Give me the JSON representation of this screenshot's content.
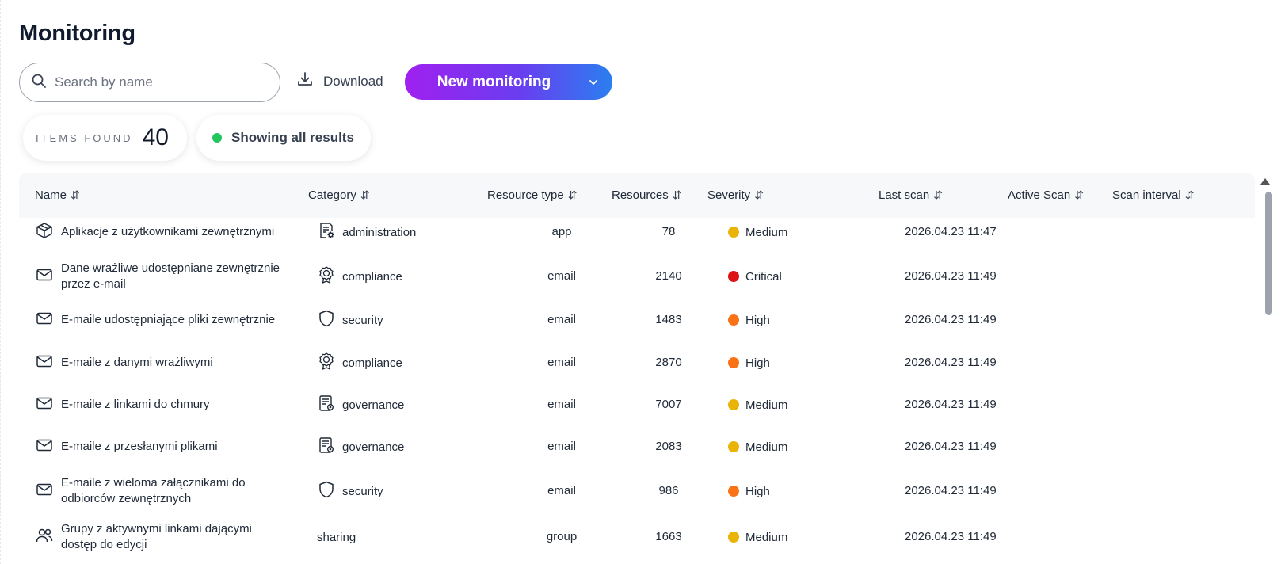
{
  "page": {
    "title": "Monitoring"
  },
  "toolbar": {
    "search_placeholder": "Search by name",
    "download_label": "Download",
    "new_label": "New monitoring"
  },
  "summary": {
    "items_found_label": "ITEMS FOUND",
    "items_found_value": "40",
    "filter_status": "Showing all results"
  },
  "table": {
    "columns": [
      "Name",
      "Category",
      "Resource type",
      "Resources",
      "Severity",
      "Last scan",
      "Active Scan",
      "Scan interval"
    ],
    "sort_icon": "⇵",
    "severity_colors": {
      "Medium": "#eab308",
      "Critical": "#dc1414",
      "High": "#f97316"
    },
    "rows": [
      {
        "icon": "app-box-icon",
        "name": "Aplikacje z użytkownikami zewnętrznymi",
        "category_icon": "document-gear-icon",
        "category": "administration",
        "resource_type": "app",
        "resources": "78",
        "severity": "Medium",
        "last_scan": "2026.04.23 11:47"
      },
      {
        "icon": "mail-icon",
        "name": "Dane wrażliwe udostępniane zewnętrznie przez e-mail",
        "category_icon": "award-badge-icon",
        "category": "compliance",
        "resource_type": "email",
        "resources": "2140",
        "severity": "Critical",
        "last_scan": "2026.04.23 11:49"
      },
      {
        "icon": "mail-icon",
        "name": "E-maile udostępniające pliki zewnętrznie",
        "category_icon": "shield-icon",
        "category": "security",
        "resource_type": "email",
        "resources": "1483",
        "severity": "High",
        "last_scan": "2026.04.23 11:49"
      },
      {
        "icon": "mail-icon",
        "name": "E-maile z danymi wrażliwymi",
        "category_icon": "award-badge-icon",
        "category": "compliance",
        "resource_type": "email",
        "resources": "2870",
        "severity": "High",
        "last_scan": "2026.04.23 11:49"
      },
      {
        "icon": "mail-icon",
        "name": "E-maile z linkami do chmury",
        "category_icon": "document-seal-icon",
        "category": "governance",
        "resource_type": "email",
        "resources": "7007",
        "severity": "Medium",
        "last_scan": "2026.04.23 11:49"
      },
      {
        "icon": "mail-icon",
        "name": "E-maile z przesłanymi plikami",
        "category_icon": "document-seal-icon",
        "category": "governance",
        "resource_type": "email",
        "resources": "2083",
        "severity": "Medium",
        "last_scan": "2026.04.23 11:49"
      },
      {
        "icon": "mail-icon",
        "name": "E-maile z wieloma załącznikami do odbiorców zewnętrznych",
        "category_icon": "shield-icon",
        "category": "security",
        "resource_type": "email",
        "resources": "986",
        "severity": "High",
        "last_scan": "2026.04.23 11:49"
      },
      {
        "icon": "users-icon",
        "name": "Grupy z aktywnymi linkami dającymi dostęp do edycji",
        "category_icon": "",
        "category": "sharing",
        "resource_type": "group",
        "resources": "1663",
        "severity": "Medium",
        "last_scan": "2026.04.23 11:49"
      }
    ]
  }
}
